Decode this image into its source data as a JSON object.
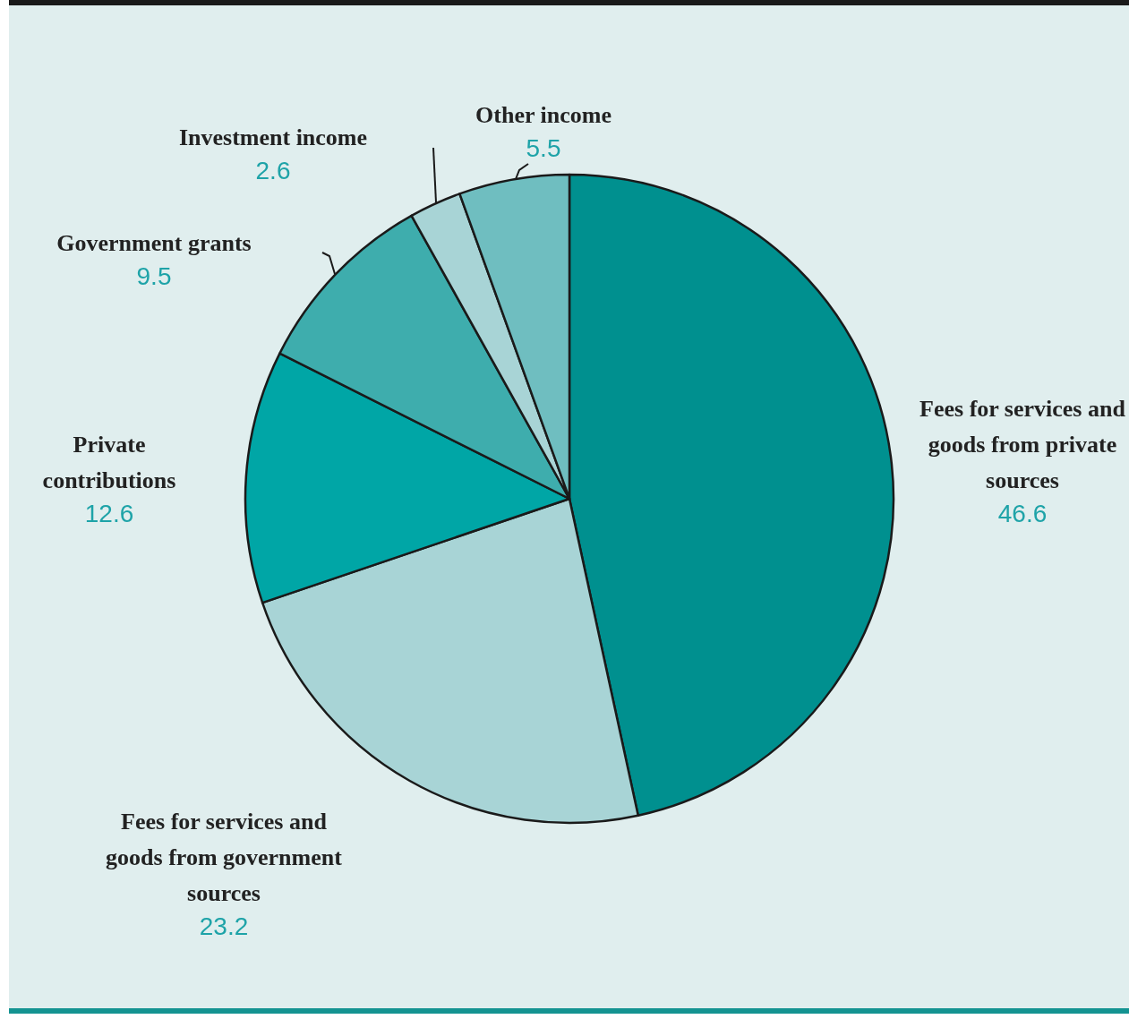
{
  "chart_data": {
    "type": "pie",
    "categories": [
      "Fees for services and goods from private sources",
      "Fees for services and goods from government sources",
      "Private contributions",
      "Government grants",
      "Investment income",
      "Other income"
    ],
    "values": [
      46.6,
      23.2,
      12.6,
      9.5,
      2.6,
      5.5
    ],
    "colors": [
      "#00908f",
      "#a8d4d6",
      "#00a6a6",
      "#3eadad",
      "#a8d4d6",
      "#6fbec0"
    ],
    "data_labels": true
  }
}
